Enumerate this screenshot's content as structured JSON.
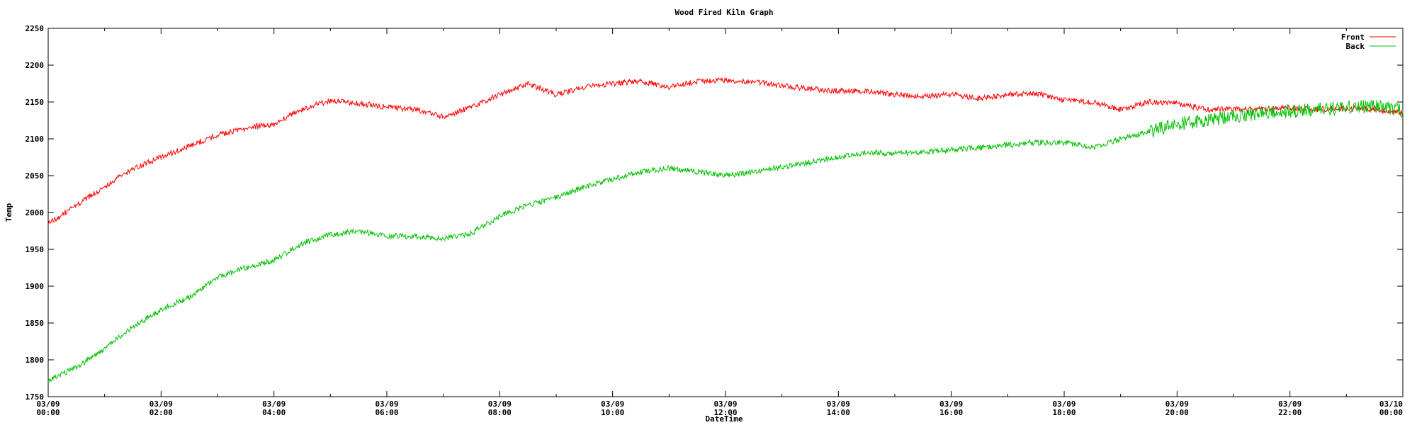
{
  "chart_data": {
    "type": "line",
    "title": "Wood Fired Kiln Graph",
    "xlabel": "DateTime",
    "ylabel": "Temp",
    "ylim": [
      1750,
      2250
    ],
    "yticks": [
      1750,
      1800,
      1850,
      1900,
      1950,
      2000,
      2050,
      2100,
      2150,
      2200,
      2250
    ],
    "xlim": [
      "03/09 00:00",
      "03/10 00:00"
    ],
    "xticks": [
      {
        "date": "03/09",
        "time": "00:00"
      },
      {
        "date": "03/09",
        "time": "02:00"
      },
      {
        "date": "03/09",
        "time": "04:00"
      },
      {
        "date": "03/09",
        "time": "06:00"
      },
      {
        "date": "03/09",
        "time": "08:00"
      },
      {
        "date": "03/09",
        "time": "10:00"
      },
      {
        "date": "03/09",
        "time": "12:00"
      },
      {
        "date": "03/09",
        "time": "14:00"
      },
      {
        "date": "03/09",
        "time": "16:00"
      },
      {
        "date": "03/09",
        "time": "18:00"
      },
      {
        "date": "03/09",
        "time": "20:00"
      },
      {
        "date": "03/09",
        "time": "22:00"
      },
      {
        "date": "03/10",
        "time": "00:00"
      }
    ],
    "grid": false,
    "legend": "top-right",
    "series": [
      {
        "name": "Front",
        "color": "#ff0000",
        "x": [
          "03/09 00:00",
          "03/09 00:30",
          "03/09 01:00",
          "03/09 01:30",
          "03/09 02:00",
          "03/09 02:30",
          "03/09 03:00",
          "03/09 03:30",
          "03/09 04:00",
          "03/09 04:30",
          "03/09 05:00",
          "03/09 05:30",
          "03/09 06:00",
          "03/09 06:30",
          "03/09 07:00",
          "03/09 07:30",
          "03/09 08:00",
          "03/09 08:30",
          "03/09 09:00",
          "03/09 09:30",
          "03/09 10:00",
          "03/09 10:30",
          "03/09 11:00",
          "03/09 11:30",
          "03/09 12:00",
          "03/09 12:30",
          "03/09 13:00",
          "03/09 13:30",
          "03/09 14:00",
          "03/09 14:30",
          "03/09 15:00",
          "03/09 15:30",
          "03/09 16:00",
          "03/09 16:30",
          "03/09 17:00",
          "03/09 17:30",
          "03/09 18:00",
          "03/09 18:30",
          "03/09 19:00",
          "03/09 19:30",
          "03/09 20:00",
          "03/09 20:30",
          "03/09 21:00",
          "03/09 21:30",
          "03/09 22:00",
          "03/09 22:30",
          "03/09 23:00",
          "03/09 23:30",
          "03/10 00:00"
        ],
        "values": [
          1985,
          2010,
          2035,
          2060,
          2075,
          2090,
          2105,
          2115,
          2120,
          2140,
          2152,
          2148,
          2143,
          2140,
          2130,
          2143,
          2160,
          2175,
          2160,
          2170,
          2175,
          2178,
          2170,
          2178,
          2180,
          2178,
          2172,
          2168,
          2165,
          2165,
          2160,
          2158,
          2160,
          2155,
          2160,
          2162,
          2152,
          2150,
          2140,
          2150,
          2148,
          2140,
          2140,
          2140,
          2142,
          2140,
          2142,
          2140,
          2135
        ]
      },
      {
        "name": "Back",
        "color": "#00c000",
        "x": [
          "03/09 00:00",
          "03/09 00:30",
          "03/09 01:00",
          "03/09 01:30",
          "03/09 02:00",
          "03/09 02:30",
          "03/09 03:00",
          "03/09 03:30",
          "03/09 04:00",
          "03/09 04:30",
          "03/09 05:00",
          "03/09 05:30",
          "03/09 06:00",
          "03/09 06:30",
          "03/09 07:00",
          "03/09 07:30",
          "03/09 08:00",
          "03/09 08:30",
          "03/09 09:00",
          "03/09 09:30",
          "03/09 10:00",
          "03/09 10:30",
          "03/09 11:00",
          "03/09 11:30",
          "03/09 12:00",
          "03/09 12:30",
          "03/09 13:00",
          "03/09 13:30",
          "03/09 14:00",
          "03/09 14:30",
          "03/09 15:00",
          "03/09 15:30",
          "03/09 16:00",
          "03/09 16:30",
          "03/09 17:00",
          "03/09 17:30",
          "03/09 18:00",
          "03/09 18:30",
          "03/09 19:00",
          "03/09 19:30",
          "03/09 20:00",
          "03/09 20:30",
          "03/09 21:00",
          "03/09 21:30",
          "03/09 22:00",
          "03/09 22:30",
          "03/09 23:00",
          "03/09 23:30",
          "03/10 00:00"
        ],
        "values": [
          1772,
          1790,
          1815,
          1845,
          1868,
          1885,
          1912,
          1925,
          1935,
          1958,
          1970,
          1975,
          1968,
          1968,
          1965,
          1972,
          1995,
          2010,
          2020,
          2035,
          2045,
          2055,
          2060,
          2055,
          2050,
          2055,
          2062,
          2068,
          2075,
          2082,
          2080,
          2082,
          2085,
          2088,
          2092,
          2095,
          2095,
          2088,
          2100,
          2110,
          2120,
          2125,
          2130,
          2135,
          2138,
          2140,
          2142,
          2145,
          2138
        ]
      }
    ]
  }
}
